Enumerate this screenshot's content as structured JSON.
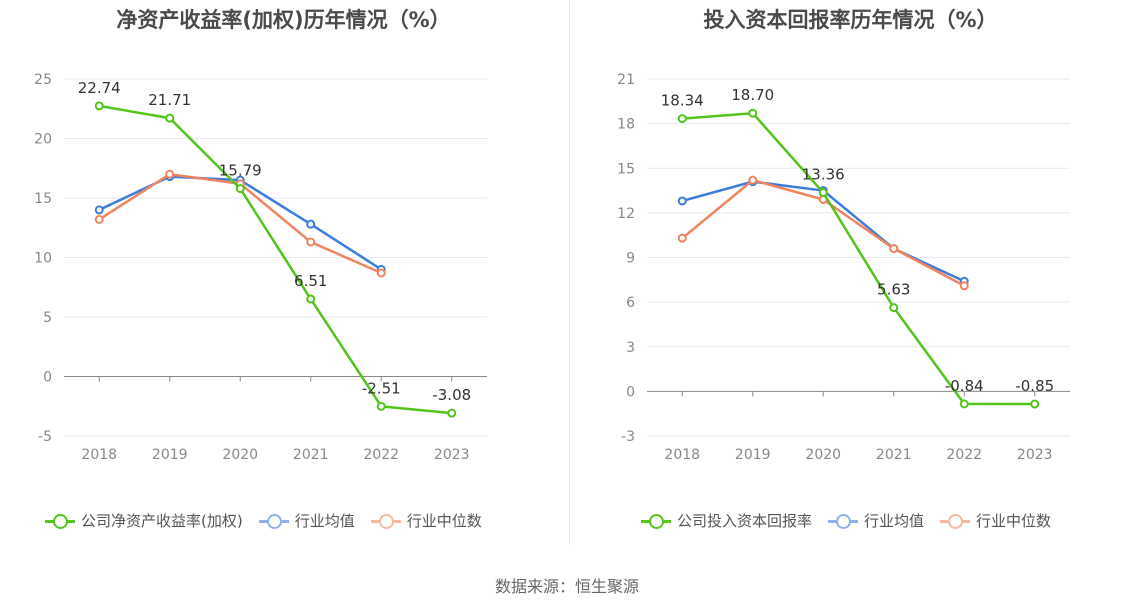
{
  "source_text": "数据来源：恒生聚源",
  "colors": {
    "company": "#52c41a",
    "industry_avg": "#3b7ddd",
    "industry_median": "#f0845e",
    "legend_avg": "#8fb0ea",
    "legend_median": "#f7b8a0"
  },
  "chart_data": [
    {
      "type": "line",
      "title": "净资产收益率(加权)历年情况（%）",
      "categories": [
        "2018",
        "2019",
        "2020",
        "2021",
        "2022",
        "2023"
      ],
      "ylim": [
        -5,
        25
      ],
      "yticks": [
        -5,
        0,
        5,
        10,
        15,
        20,
        25
      ],
      "grid": true,
      "legend_placement": "bottom",
      "series": [
        {
          "name": "公司净资产收益率(加权)",
          "values": [
            22.74,
            21.71,
            15.79,
            6.51,
            -2.51,
            -3.08
          ],
          "labels": [
            "22.74",
            "21.71",
            "15.79",
            "6.51",
            "-2.51",
            "-3.08"
          ]
        },
        {
          "name": "行业均值",
          "values": [
            14.0,
            16.8,
            16.5,
            12.8,
            9.0,
            null
          ]
        },
        {
          "name": "行业中位数",
          "values": [
            13.2,
            17.0,
            16.2,
            11.3,
            8.7,
            null
          ]
        }
      ]
    },
    {
      "type": "line",
      "title": "投入资本回报率历年情况（%）",
      "categories": [
        "2018",
        "2019",
        "2020",
        "2021",
        "2022",
        "2023"
      ],
      "ylim": [
        -3,
        21
      ],
      "yticks": [
        -3,
        0,
        3,
        6,
        9,
        12,
        15,
        18,
        21
      ],
      "grid": true,
      "legend_placement": "bottom",
      "series": [
        {
          "name": "公司投入资本回报率",
          "values": [
            18.34,
            18.7,
            13.36,
            5.63,
            -0.84,
            -0.85
          ],
          "labels": [
            "18.34",
            "18.70",
            "13.36",
            "5.63",
            "-0.84",
            "-0.85"
          ]
        },
        {
          "name": "行业均值",
          "values": [
            12.8,
            14.1,
            13.5,
            9.6,
            7.4,
            null
          ]
        },
        {
          "name": "行业中位数",
          "values": [
            10.3,
            14.2,
            12.9,
            9.6,
            7.1,
            null
          ]
        }
      ]
    }
  ]
}
